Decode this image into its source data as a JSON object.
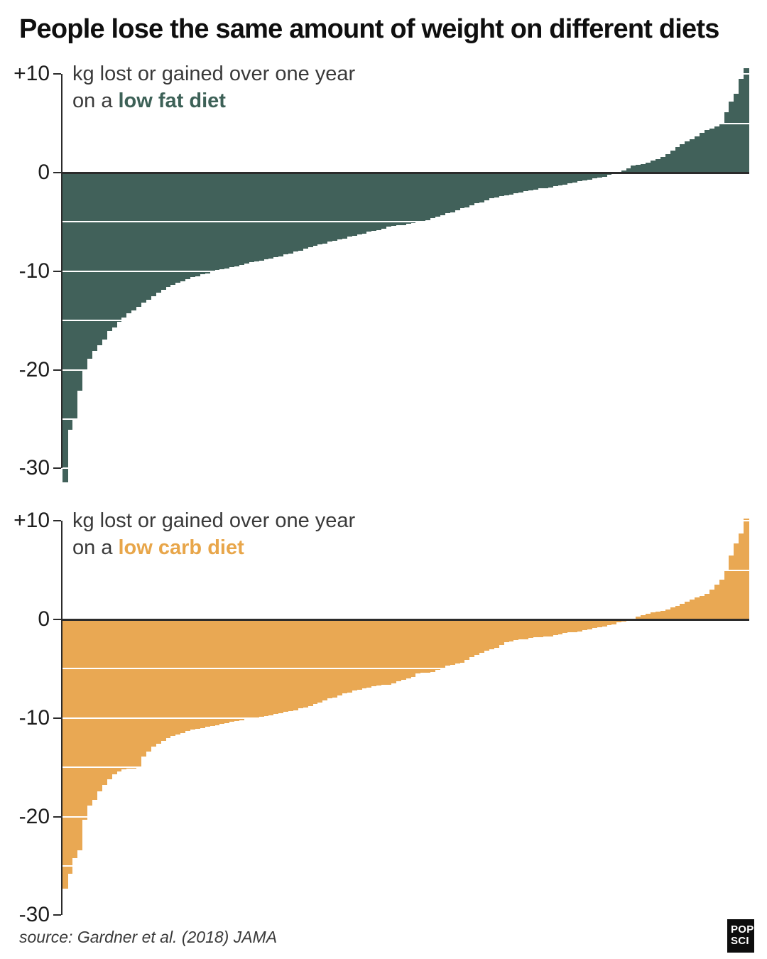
{
  "title": "People lose the same amount of weight on different diets",
  "source": "source: Gardner et al. (2018) JAMA",
  "logo": {
    "line1": "POP",
    "line2": "SCI"
  },
  "axis": {
    "unit": "kg",
    "tick_labels": [
      "+10",
      "0",
      "-10",
      "-20",
      "-30"
    ],
    "tick_values": [
      10,
      0,
      -10,
      -20,
      -30
    ],
    "gridline_values": [
      10,
      5,
      -5,
      -10,
      -15,
      -20,
      -25,
      -30
    ],
    "ymin": -32,
    "ymax": 11
  },
  "chart_data": [
    {
      "type": "bar",
      "title": "kg lost or gained over one year",
      "subtitle_prefix": "on a ",
      "diet_label": "low fat diet",
      "bar_color": "#41615a",
      "label_color": "#3d6157",
      "ylabel": "kg lost or gained over one year",
      "xlabel": "",
      "ylim": [
        -32,
        11
      ],
      "x_description": "individual participants sorted by weight change",
      "grid": "white lines every 5 kg over bars",
      "values": [
        -31.4,
        -26.1,
        -24.9,
        -22.1,
        -20.0,
        -18.9,
        -18.1,
        -17.5,
        -16.9,
        -16.1,
        -15.7,
        -15.1,
        -14.7,
        -14.3,
        -14.0,
        -13.6,
        -13.2,
        -12.9,
        -12.5,
        -12.2,
        -11.9,
        -11.6,
        -11.4,
        -11.2,
        -11.0,
        -10.8,
        -10.6,
        -10.5,
        -10.3,
        -10.2,
        -10.0,
        -9.9,
        -9.8,
        -9.7,
        -9.6,
        -9.5,
        -9.4,
        -9.2,
        -9.1,
        -9.0,
        -8.9,
        -8.8,
        -8.7,
        -8.6,
        -8.5,
        -8.3,
        -8.2,
        -8.0,
        -7.9,
        -7.7,
        -7.6,
        -7.4,
        -7.3,
        -7.2,
        -7.0,
        -6.9,
        -6.8,
        -6.7,
        -6.5,
        -6.4,
        -6.3,
        -6.2,
        -6.0,
        -5.9,
        -5.8,
        -5.7,
        -5.5,
        -5.4,
        -5.3,
        -5.3,
        -5.2,
        -5.1,
        -5.0,
        -4.9,
        -4.8,
        -4.6,
        -4.5,
        -4.3,
        -4.1,
        -4.0,
        -3.8,
        -3.6,
        -3.5,
        -3.3,
        -3.1,
        -3.0,
        -2.8,
        -2.6,
        -2.5,
        -2.4,
        -2.3,
        -2.2,
        -2.1,
        -2.0,
        -1.9,
        -1.8,
        -1.7,
        -1.6,
        -1.6,
        -1.5,
        -1.4,
        -1.3,
        -1.2,
        -1.1,
        -1.0,
        -0.9,
        -0.8,
        -0.7,
        -0.6,
        -0.5,
        -0.4,
        -0.2,
        -0.1,
        0.0,
        0.2,
        0.4,
        0.7,
        0.8,
        0.9,
        1.0,
        1.2,
        1.4,
        1.6,
        1.9,
        2.2,
        2.6,
        2.9,
        3.2,
        3.4,
        3.7,
        4.0,
        4.3,
        4.5,
        4.7,
        5.0,
        6.1,
        7.2,
        8.0,
        9.5,
        10.6
      ]
    },
    {
      "type": "bar",
      "title": "kg lost or gained over one year",
      "subtitle_prefix": "on a ",
      "diet_label": "low carb diet",
      "bar_color": "#e9a853",
      "label_color": "#e8a64a",
      "ylabel": "kg lost or gained over one year",
      "xlabel": "",
      "ylim": [
        -32,
        11
      ],
      "x_description": "individual participants sorted by weight change",
      "grid": "white lines every 5 kg over bars",
      "values": [
        -27.3,
        -25.8,
        -24.2,
        -23.4,
        -20.3,
        -18.9,
        -18.3,
        -17.4,
        -16.8,
        -16.2,
        -15.7,
        -15.4,
        -15.2,
        -15.1,
        -15.1,
        -14.9,
        -13.9,
        -13.4,
        -12.9,
        -12.6,
        -12.3,
        -12.0,
        -11.8,
        -11.7,
        -11.5,
        -11.3,
        -11.2,
        -11.1,
        -11.0,
        -10.9,
        -10.8,
        -10.7,
        -10.6,
        -10.5,
        -10.4,
        -10.3,
        -10.2,
        -10.1,
        -10.1,
        -10.0,
        -9.9,
        -9.8,
        -9.7,
        -9.6,
        -9.5,
        -9.4,
        -9.3,
        -9.2,
        -9.0,
        -8.9,
        -8.8,
        -8.6,
        -8.4,
        -8.2,
        -8.0,
        -7.9,
        -7.7,
        -7.5,
        -7.4,
        -7.2,
        -7.1,
        -7.0,
        -6.9,
        -6.8,
        -6.7,
        -6.6,
        -6.6,
        -6.5,
        -6.3,
        -6.1,
        -6.0,
        -5.8,
        -5.5,
        -5.4,
        -5.4,
        -5.3,
        -5.1,
        -4.9,
        -4.7,
        -4.6,
        -4.5,
        -4.4,
        -4.1,
        -3.8,
        -3.6,
        -3.4,
        -3.2,
        -3.0,
        -2.9,
        -2.6,
        -2.3,
        -2.2,
        -2.1,
        -2.0,
        -2.0,
        -1.9,
        -1.8,
        -1.8,
        -1.7,
        -1.7,
        -1.6,
        -1.5,
        -1.4,
        -1.3,
        -1.3,
        -1.2,
        -1.1,
        -1.0,
        -0.9,
        -0.8,
        -0.7,
        -0.6,
        -0.5,
        -0.3,
        -0.2,
        -0.1,
        0.1,
        0.3,
        0.4,
        0.6,
        0.7,
        0.8,
        0.9,
        1.0,
        1.2,
        1.4,
        1.6,
        1.8,
        2.0,
        2.2,
        2.4,
        2.6,
        3.0,
        3.5,
        4.0,
        4.9,
        6.5,
        7.7,
        8.7,
        10.2
      ]
    }
  ]
}
